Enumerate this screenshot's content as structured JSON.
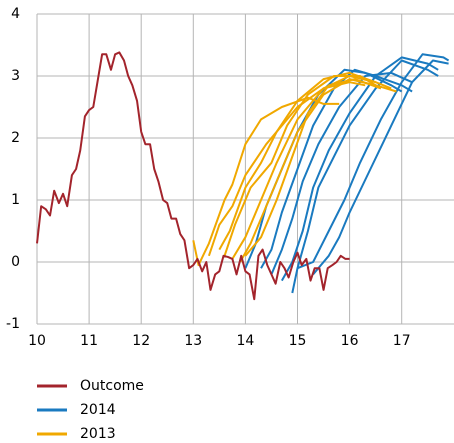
{
  "chart_data": {
    "type": "line",
    "xlim": [
      10,
      18
    ],
    "xticks": [
      10,
      11,
      12,
      13,
      14,
      15,
      16,
      17
    ],
    "ylim": [
      -1,
      4
    ],
    "yticks": [
      -1,
      0,
      1,
      2,
      3,
      4
    ],
    "grid": true,
    "series": [
      {
        "name": "Outcome",
        "color": "#a3242c",
        "x": [
          10.0,
          10.08,
          10.17,
          10.25,
          10.33,
          10.42,
          10.5,
          10.58,
          10.67,
          10.75,
          10.83,
          10.92,
          11.0,
          11.08,
          11.17,
          11.25,
          11.33,
          11.42,
          11.5,
          11.58,
          11.67,
          11.75,
          11.83,
          11.92,
          12.0,
          12.08,
          12.17,
          12.25,
          12.33,
          12.42,
          12.5,
          12.58,
          12.67,
          12.75,
          12.83,
          12.92,
          13.0,
          13.08,
          13.17,
          13.25,
          13.33,
          13.42,
          13.5,
          13.58,
          13.67,
          13.75,
          13.83,
          13.92,
          14.0,
          14.08,
          14.17,
          14.25,
          14.33,
          14.42,
          14.5,
          14.58,
          14.67,
          14.75,
          14.83,
          14.92,
          15.0,
          15.08,
          15.17,
          15.25,
          15.33,
          15.42,
          15.5,
          15.58,
          15.67,
          15.75,
          15.83,
          15.92,
          16.0
        ],
        "values": [
          0.3,
          0.9,
          0.85,
          0.75,
          1.15,
          0.95,
          1.1,
          0.9,
          1.4,
          1.5,
          1.8,
          2.35,
          2.45,
          2.5,
          2.95,
          3.35,
          3.35,
          3.1,
          3.35,
          3.38,
          3.25,
          3.0,
          2.85,
          2.6,
          2.1,
          1.9,
          1.9,
          1.5,
          1.3,
          1.0,
          0.95,
          0.7,
          0.7,
          0.45,
          0.35,
          -0.1,
          -0.05,
          0.05,
          -0.15,
          0.0,
          -0.45,
          -0.2,
          -0.15,
          0.1,
          0.08,
          0.05,
          -0.2,
          0.1,
          -0.15,
          -0.2,
          -0.6,
          0.1,
          0.2,
          -0.05,
          -0.2,
          -0.35,
          0.0,
          -0.1,
          -0.25,
          0.0,
          0.15,
          -0.05,
          0.05,
          -0.3,
          -0.1,
          -0.1,
          -0.45,
          -0.1,
          -0.05,
          0.0,
          0.1,
          0.05,
          0.05
        ]
      },
      {
        "name": "2014",
        "color": "#1a7ac0",
        "lines": [
          {
            "x": [
              14.0,
              14.2,
              14.4,
              14.7,
              15.0,
              15.4,
              15.9,
              16.3,
              16.8,
              17.0
            ],
            "values": [
              -0.1,
              0.3,
              0.9,
              1.5,
              2.1,
              2.7,
              3.1,
              3.05,
              2.85,
              2.75
            ]
          },
          {
            "x": [
              14.3,
              14.5,
              14.7,
              15.0,
              15.3,
              15.7,
              16.1,
              16.5,
              17.0,
              17.2
            ],
            "values": [
              -0.1,
              0.2,
              0.8,
              1.5,
              2.2,
              2.8,
              3.1,
              3.0,
              2.85,
              2.75
            ]
          },
          {
            "x": [
              14.5,
              14.7,
              14.9,
              15.1,
              15.4,
              15.8,
              16.3,
              16.8,
              17.2
            ],
            "values": [
              -0.2,
              0.2,
              0.7,
              1.3,
              1.9,
              2.5,
              3.0,
              3.05,
              2.9
            ]
          },
          {
            "x": [
              14.7,
              14.9,
              15.1,
              15.3,
              15.6,
              16.0,
              16.5,
              17.0,
              17.5,
              17.7
            ],
            "values": [
              -0.3,
              0.0,
              0.5,
              1.2,
              1.8,
              2.4,
              3.0,
              3.3,
              3.2,
              3.1
            ]
          },
          {
            "x": [
              14.9,
              15.0,
              15.2,
              15.4,
              15.7,
              16.0,
              16.5,
              17.0,
              17.5,
              17.7
            ],
            "values": [
              -0.5,
              -0.1,
              0.5,
              1.2,
              1.7,
              2.2,
              2.8,
              3.25,
              3.1,
              3.0
            ]
          },
          {
            "x": [
              15.0,
              15.3,
              15.6,
              15.9,
              16.2,
              16.6,
              17.0,
              17.4,
              17.8,
              17.9
            ],
            "values": [
              -0.1,
              0.0,
              0.5,
              1.0,
              1.6,
              2.3,
              2.9,
              3.35,
              3.3,
              3.25
            ]
          },
          {
            "x": [
              15.3,
              15.6,
              15.8,
              16.0,
              16.4,
              16.8,
              17.2,
              17.6,
              17.9
            ],
            "values": [
              -0.2,
              0.1,
              0.4,
              0.8,
              1.5,
              2.2,
              2.9,
              3.25,
              3.2
            ]
          }
        ]
      },
      {
        "name": "2013",
        "color": "#f0a800",
        "lines": [
          {
            "x": [
              13.0,
              13.1,
              13.3,
              13.6,
              13.75,
              14.0,
              14.3,
              14.7,
              15.2,
              15.5,
              15.8
            ],
            "values": [
              0.35,
              -0.05,
              0.3,
              1.0,
              1.25,
              1.9,
              2.3,
              2.5,
              2.65,
              2.55,
              2.55
            ]
          },
          {
            "x": [
              13.3,
              13.5,
              13.75,
              14.0,
              14.4,
              15.0,
              15.5,
              16.0,
              16.3
            ],
            "values": [
              0.1,
              0.6,
              0.9,
              1.4,
              1.9,
              2.5,
              2.8,
              2.9,
              2.85
            ]
          },
          {
            "x": [
              13.5,
              13.7,
              14.0,
              14.3,
              14.6,
              15.0,
              15.5,
              16.0,
              16.5
            ],
            "values": [
              0.2,
              0.5,
              1.2,
              1.6,
              2.1,
              2.6,
              2.95,
              3.05,
              2.9
            ]
          },
          {
            "x": [
              13.6,
              13.8,
              14.1,
              14.5,
              14.8,
              15.2,
              15.7,
              16.2,
              16.6
            ],
            "values": [
              0.1,
              0.6,
              1.2,
              1.6,
              2.2,
              2.7,
              3.0,
              3.0,
              2.8
            ]
          },
          {
            "x": [
              13.75,
              14.0,
              14.3,
              14.6,
              15.0,
              15.5,
              16.0,
              16.5,
              16.8
            ],
            "values": [
              0.05,
              0.4,
              1.0,
              1.6,
              2.3,
              2.8,
              3.0,
              2.9,
              2.8
            ]
          },
          {
            "x": [
              13.9,
              14.1,
              14.4,
              14.7,
              15.0,
              15.5,
              16.0,
              16.5,
              16.9
            ],
            "values": [
              0.0,
              0.3,
              0.9,
              1.5,
              2.1,
              2.7,
              2.95,
              2.85,
              2.75
            ]
          },
          {
            "x": [
              14.0,
              14.3,
              14.6,
              14.9,
              15.2,
              15.6,
              16.1,
              16.6
            ],
            "values": [
              0.1,
              0.4,
              1.0,
              1.7,
              2.4,
              2.85,
              2.95,
              2.8
            ]
          }
        ]
      }
    ]
  }
}
